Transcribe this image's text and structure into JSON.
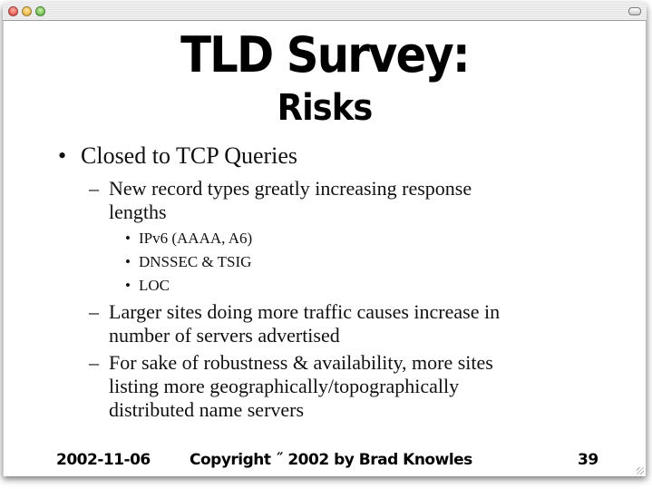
{
  "window": {
    "controls": [
      "close",
      "minimize",
      "zoom"
    ],
    "toolbar_button": "toolbar-toggle"
  },
  "slide": {
    "title_line1": "TLD Survey:",
    "title_line2": "Risks",
    "bullets": [
      {
        "text": "Closed to TCP Queries",
        "marker": "•",
        "children": [
          {
            "text_lines": [
              "New record types greatly increasing response",
              "lengths"
            ],
            "marker": "–",
            "children": [
              {
                "text": "IPv6 (AAAA, A6)",
                "marker": "•"
              },
              {
                "text": "DNSSEC & TSIG",
                "marker": "•"
              },
              {
                "text": "LOC",
                "marker": "•"
              }
            ]
          },
          {
            "text_lines": [
              "Larger sites doing more traffic causes increase in",
              "number of servers advertised"
            ],
            "marker": "–"
          },
          {
            "text_lines": [
              "For sake of robustness & availability, more sites",
              "listing more geographically/topographically",
              "distributed name servers"
            ],
            "marker": "–"
          }
        ]
      }
    ],
    "footer": {
      "date": "2002-11-06",
      "copyright": "Copyright ˝ 2002 by Brad Knowles",
      "page": "39"
    }
  }
}
